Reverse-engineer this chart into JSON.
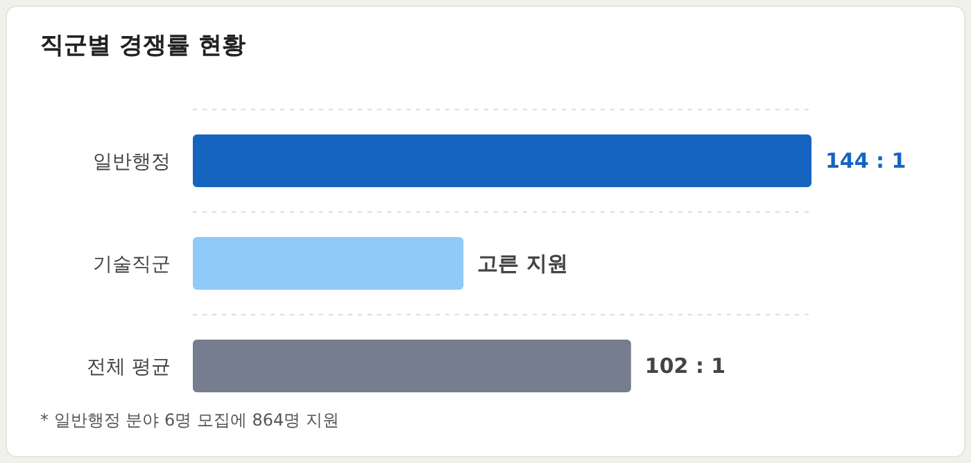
{
  "chart_data": {
    "type": "bar",
    "orientation": "horizontal",
    "title": "직군별 경쟁률 현황",
    "categories": [
      "일반행정",
      "기술직군",
      "전체 평균"
    ],
    "values": [
      144,
      63,
      102
    ],
    "colors": [
      "#1565c0",
      "#90caf9",
      "#757d8f"
    ],
    "value_labels": [
      "144 : 1",
      "고른 지원",
      "102 : 1"
    ],
    "grid": "y",
    "annotations": [
      "* 일반행정 분야 6명 모집에 864명 지원"
    ]
  }
}
